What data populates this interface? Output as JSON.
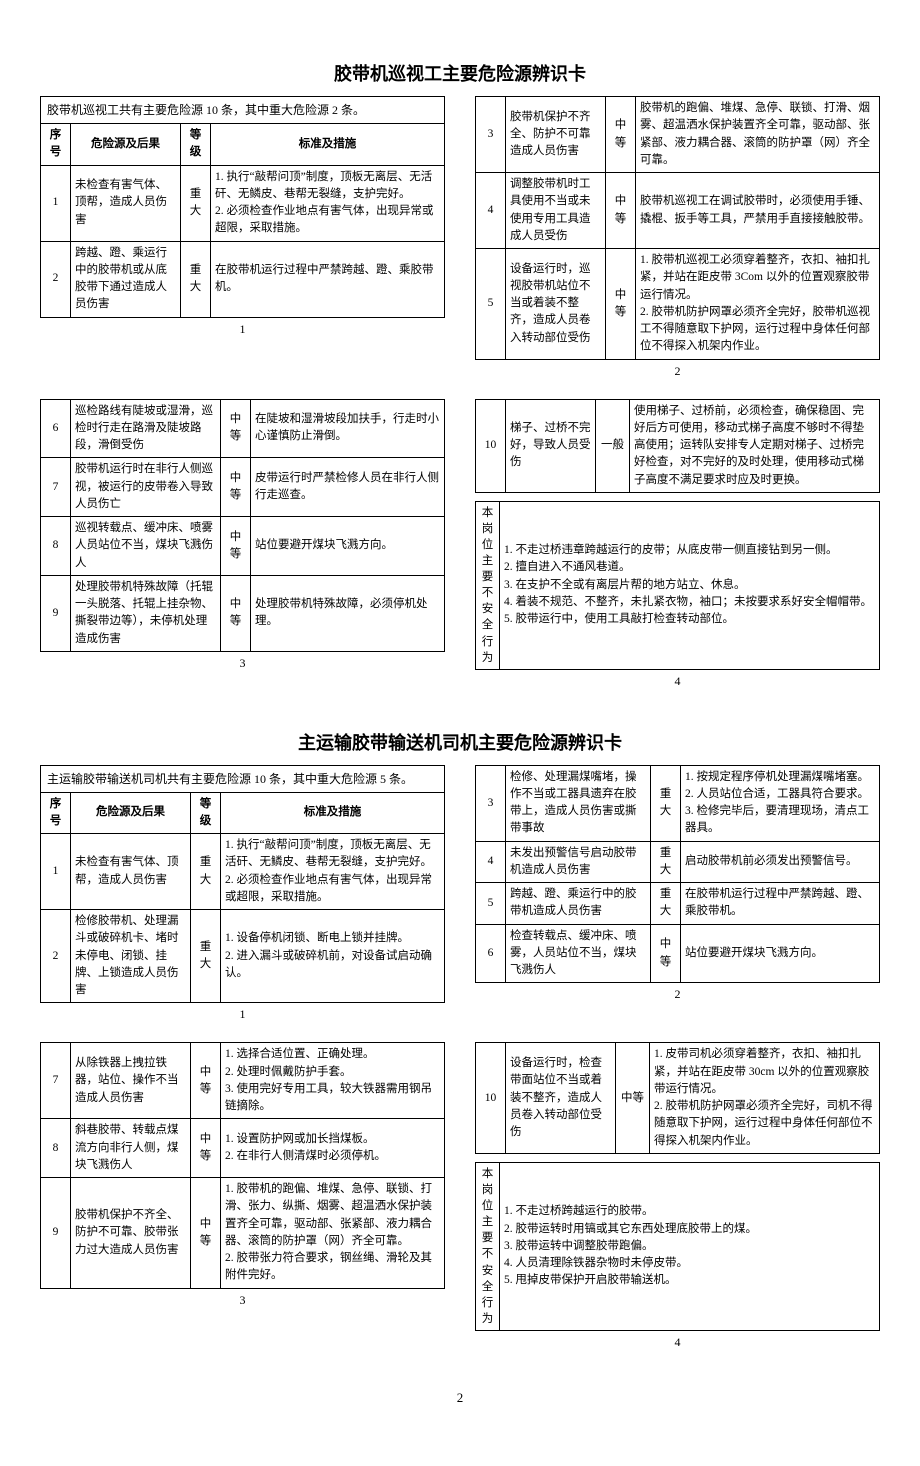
{
  "section1": {
    "title": "胶带机巡视工主要危险源辨识卡",
    "intro": "胶带机巡视工共有主要危险源 10 条，其中重大危险源 2 条。",
    "headers": [
      "序号",
      "危险源及后果",
      "等级",
      "标准及措施"
    ],
    "card1": {
      "page": "1",
      "rows": [
        {
          "no": "1",
          "haz": "未检查有害气体、顶帮，造成人员伤害",
          "lvl": "重大",
          "meas": "1. 执行“敲帮问顶”制度，顶板无离层、无活矸、无鳞皮、巷帮无裂缝，支护完好。\n2. 必须检查作业地点有害气体，出现异常或超限，采取措施。"
        },
        {
          "no": "2",
          "haz": "跨越、蹬、乘运行中的胶带机或从底胶带下通过造成人员伤害",
          "lvl": "重大",
          "meas": "在胶带机运行过程中严禁跨越、蹬、乘胶带机。"
        }
      ]
    },
    "card2": {
      "page": "2",
      "rows": [
        {
          "no": "3",
          "haz": "胶带机保护不齐全、防护不可靠造成人员伤害",
          "lvl": "中等",
          "meas": "胶带机的跑偏、堆煤、急停、联锁、打滑、烟雾、超温洒水保护装置齐全可靠，驱动部、张紧部、液力耦合器、滚筒的防护罩（网）齐全可靠。"
        },
        {
          "no": "4",
          "haz": "调整胶带机时工具使用不当或未使用专用工具造成人员受伤",
          "lvl": "中等",
          "meas": "胶带机巡视工在调试胶带时，必须使用手锤、撬棍、扳手等工具，严禁用手直接接触胶带。"
        },
        {
          "no": "5",
          "haz": "设备运行时，巡视胶带机站位不当或着装不整齐，造成人员卷入转动部位受伤",
          "lvl": "中等",
          "meas": "1. 胶带机巡视工必须穿着整齐，衣扣、袖扣扎紧，并站在距皮带 3Com 以外的位置观察胶带运行情况。\n2. 胶带机防护网罩必须齐全完好，胶带机巡视工不得随意取下护网，运行过程中身体任何部位不得探入机架内作业。"
        }
      ]
    },
    "card3": {
      "page": "3",
      "rows": [
        {
          "no": "6",
          "haz": "巡检路线有陡坡或湿滑，巡检时行走在路滑及陡坡路段，滑倒受伤",
          "lvl": "中等",
          "meas": "在陡坡和湿滑坡段加扶手，行走时小心谨慎防止滑倒。"
        },
        {
          "no": "7",
          "haz": "胶带机运行时在非行人侧巡视，被运行的皮带卷入导致人员伤亡",
          "lvl": "中等",
          "meas": "皮带运行时严禁检修人员在非行人侧行走巡查。"
        },
        {
          "no": "8",
          "haz": "巡视转载点、缓冲床、喷雾人员站位不当，煤块飞溅伤人",
          "lvl": "中等",
          "meas": "站位要避开煤块飞溅方向。"
        },
        {
          "no": "9",
          "haz": "处理胶带机特殊故障（托辊一头脱落、托辊上挂杂物、撕裂带边等），未停机处理造成伤害",
          "lvl": "中等",
          "meas": "处理胶带机特殊故障，必须停机处理。"
        }
      ]
    },
    "card4": {
      "page": "4",
      "row10": {
        "no": "10",
        "haz": "梯子、过桥不完好，导致人员受伤",
        "lvl": "一般",
        "meas": "使用梯子、过桥前，必须检查，确保稳固、完好后方可使用，移动式梯子高度不够时不得垫高使用；运转队安排专人定期对梯子、过桥完好检查，对不完好的及时处理，使用移动式梯子高度不满足要求时应及时更换。"
      },
      "safety_label": "本岗位主要不安全行为",
      "safety_items": [
        "1. 不走过桥违章跨越运行的皮带；从底皮带一侧直接钻到另一侧。",
        "2. 擅自进入不通风巷道。",
        "3. 在支护不全或有离层片帮的地方站立、休息。",
        "4. 着装不规范、不整齐，未扎紧衣物，袖口；未按要求系好安全帽帽带。",
        "5. 胶带运行中，使用工具敲打检查转动部位。"
      ]
    }
  },
  "section2": {
    "title": "主运输胶带输送机司机主要危险源辨识卡",
    "intro": "主运输胶带输送机司机共有主要危险源 10 条，其中重大危险源 5 条。",
    "headers": [
      "序号",
      "危险源及后果",
      "等级",
      "标准及措施"
    ],
    "card1": {
      "page": "1",
      "rows": [
        {
          "no": "1",
          "haz": "未检查有害气体、顶帮，造成人员伤害",
          "lvl": "重大",
          "meas": "1. 执行“敲帮问顶”制度，顶板无离层、无活矸、无鳞皮、巷帮无裂缝，支护完好。\n2. 必须检查作业地点有害气体，出现异常或超限，采取措施。"
        },
        {
          "no": "2",
          "haz": "检修胶带机、处理漏斗或破碎机卡、堵时未停电、闭锁、挂牌、上锁造成人员伤害",
          "lvl": "重大",
          "meas": "1. 设备停机闭锁、断电上锁并挂牌。\n2. 进入漏斗或破碎机前，对设备试启动确认。"
        }
      ]
    },
    "card2": {
      "page": "2",
      "rows": [
        {
          "no": "3",
          "haz": "检修、处理漏煤嘴堵，操作不当或工器具遗弃在胶带上，造成人员伤害或撕带事故",
          "lvl": "重大",
          "meas": "1. 按规定程序停机处理漏煤嘴堵塞。\n2. 人员站位合适，工器具符合要求。\n3. 检修完毕后，要清理现场，清点工器具。"
        },
        {
          "no": "4",
          "haz": "未发出预警信号启动胶带机造成人员伤害",
          "lvl": "重大",
          "meas": "启动胶带机前必须发出预警信号。"
        },
        {
          "no": "5",
          "haz": "跨越、蹬、乘运行中的胶带机造成人员伤害",
          "lvl": "重大",
          "meas": "在胶带机运行过程中严禁跨越、蹬、乘胶带机。"
        },
        {
          "no": "6",
          "haz": "检查转载点、缓冲床、喷雾，人员站位不当，煤块飞溅伤人",
          "lvl": "中等",
          "meas": "站位要避开煤块飞溅方向。"
        }
      ]
    },
    "card3": {
      "page": "3",
      "rows": [
        {
          "no": "7",
          "haz": "从除铁器上拽拉铁器，站位、操作不当造成人员伤害",
          "lvl": "中等",
          "meas": "1. 选择合适位置、正确处理。\n2. 处理时佩戴防护手套。\n3. 使用完好专用工具，较大铁器需用钢吊链摘除。"
        },
        {
          "no": "8",
          "haz": "斜巷胶带、转载点煤流方向非行人侧，煤块飞溅伤人",
          "lvl": "中等",
          "meas": "1. 设置防护网或加长挡煤板。\n2. 在非行人侧清煤时必须停机。"
        },
        {
          "no": "9",
          "haz": "胶带机保护不齐全、防护不可靠、胶带张力过大造成人员伤害",
          "lvl": "中等",
          "meas": "1. 胶带机的跑偏、堆煤、急停、联锁、打滑、张力、纵撕、烟雾、超温洒水保护装置齐全可靠，驱动部、张紧部、液力耦合器、滚筒的防护罩（网）齐全可靠。\n2. 胶带张力符合要求，钢丝绳、滑轮及其附件完好。"
        }
      ]
    },
    "card4": {
      "page": "4",
      "row10": {
        "no": "10",
        "haz": "设备运行时，检查带面站位不当或着装不整齐，造成人员卷入转动部位受伤",
        "lvl": "中等",
        "meas": "1. 皮带司机必须穿着整齐，衣扣、袖扣扎紧，并站在距皮带 30cm 以外的位置观察胶带运行情况。\n2. 胶带机防护网罩必须齐全完好，司机不得随意取下护网，运行过程中身体任何部位不得探入机架内作业。"
      },
      "safety_label": "本岗位主要不安全行为",
      "safety_items": [
        "1. 不走过桥跨越运行的胶带。",
        "2. 胶带运转时用镐或其它东西处理底胶带上的煤。",
        "3. 胶带运转中调整胶带跑偏。",
        "4. 人员清理除铁器杂物时未停皮带。",
        "5. 甩掉皮带保护开启胶带输送机。"
      ]
    }
  },
  "footer_page": "2"
}
